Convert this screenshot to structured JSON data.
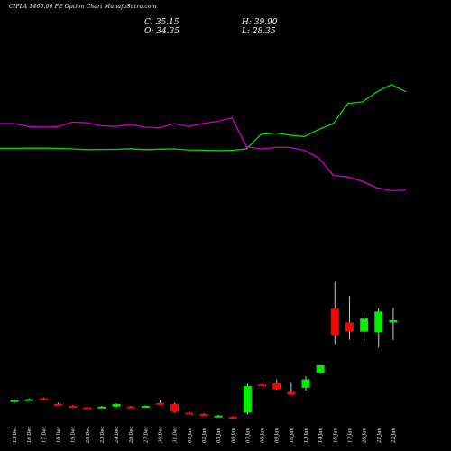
{
  "header": {
    "title": "CIPLA 1460.00  PE Option  Chart MunafaSutra.com",
    "close": "C: 35.15",
    "high": "H: 39.90",
    "open": "O: 34.35",
    "low": "L: 28.35"
  },
  "colors": {
    "background": "#000000",
    "up": "#00ee00",
    "down": "#ff0000",
    "line_upper": "#00dd00",
    "line_magenta": "#cc00cc",
    "text": "#ffffff"
  },
  "chart_data": {
    "type": "candlestick",
    "x_labels": [
      "13 Dec",
      "16 Dec",
      "17 Dec",
      "18 Dec",
      "19 Dec",
      "20 Dec",
      "23 Dec",
      "24 Dec",
      "26 Dec",
      "27 Dec",
      "30 Dec",
      "31 Dec",
      "01 Jan",
      "02 Jan",
      "03 Jan",
      "06 Jan",
      "07 Jan",
      "08 Jan",
      "09 Jan",
      "10 Jan",
      "13 Jan",
      "14 Jan",
      "16 Jan",
      "17 Jan",
      "20 Jan",
      "21 Jan",
      "22 Jan"
    ],
    "candles": [
      {
        "open": 2.6,
        "high": 3.1,
        "low": 2.1,
        "close": 3.0
      },
      {
        "open": 3.3,
        "high": 3.6,
        "low": 3.0,
        "close": 3.3
      },
      {
        "open": 3.6,
        "high": 3.8,
        "low": 2.9,
        "close": 3.0
      },
      {
        "open": 1.8,
        "high": 2.2,
        "low": 1.3,
        "close": 1.5
      },
      {
        "open": 1.2,
        "high": 1.4,
        "low": 0.6,
        "close": 0.8
      },
      {
        "open": 0.8,
        "high": 1.0,
        "low": 0.5,
        "close": 0.7
      },
      {
        "open": 0.8,
        "high": 1.2,
        "low": 0.5,
        "close": 1.0
      },
      {
        "open": 1.0,
        "high": 2.0,
        "low": 0.8,
        "close": 1.8
      },
      {
        "open": 1.0,
        "high": 1.2,
        "low": 0.8,
        "close": 0.9
      },
      {
        "open": 0.9,
        "high": 1.4,
        "low": 0.7,
        "close": 1.2
      },
      {
        "open": 2.1,
        "high": 2.9,
        "low": 1.7,
        "close": 1.9
      },
      {
        "open": 1.8,
        "high": 2.1,
        "low": -0.9,
        "close": -0.6
      },
      {
        "open": -0.9,
        "high": -0.6,
        "low": -1.1,
        "close": -1.0
      },
      {
        "open": -1.3,
        "high": -1.1,
        "low": -1.8,
        "close": -1.7
      },
      {
        "open": -1.8,
        "high": -1.6,
        "low": -2.0,
        "close": -1.8
      },
      {
        "open": -2.2,
        "high": -2.0,
        "low": -2.5,
        "close": -2.4
      },
      {
        "open": -0.8,
        "high": 8.2,
        "low": -1.4,
        "close": 7.4
      },
      {
        "open": 7.9,
        "high": 9.0,
        "low": 6.5,
        "close": 7.7
      },
      {
        "open": 8.3,
        "high": 9.5,
        "low": 6.2,
        "close": 6.4
      },
      {
        "open": 5.6,
        "high": 8.4,
        "low": 4.6,
        "close": 4.7
      },
      {
        "open": 6.9,
        "high": 10.5,
        "low": 6.0,
        "close": 9.5
      },
      {
        "open": 11.6,
        "high": 14.0,
        "low": 11.2,
        "close": 13.9
      },
      {
        "open": 31.6,
        "high": 39.9,
        "low": 20.5,
        "close": 23.4
      },
      {
        "open": 27.3,
        "high": 35.5,
        "low": 21.9,
        "close": 24.5
      },
      {
        "open": 24.4,
        "high": 29.5,
        "low": 20.5,
        "close": 28.5
      },
      {
        "open": 24.2,
        "high": 31.7,
        "low": 19.4,
        "close": 30.7
      },
      {
        "open": 27.3,
        "high": 31.8,
        "low": 21.8,
        "close": 28.0
      }
    ],
    "series": [
      {
        "values": [
          12.9,
          12.9,
          13.0,
          13.0,
          12.9,
          12.5,
          12.0,
          12.1,
          12.2,
          12.6,
          12.0,
          12.3,
          12.5,
          11.8,
          11.6,
          11.3,
          11.5,
          12.5,
          22.5,
          23.5,
          22.0,
          21.0,
          26.0,
          30.0,
          44.0,
          45.0,
          52.0,
          57.0,
          52.0
        ]
      },
      {
        "values": [
          30.0,
          30.0,
          28.0,
          27.5,
          28.0,
          31.0,
          30.5,
          28.5,
          28.0,
          29.5,
          27.5,
          27.0,
          30.0,
          28.0,
          30.0,
          31.5,
          34.0,
          14.0,
          12.5,
          13.5,
          13.5,
          11.5,
          6.0,
          -6.0,
          -7.0,
          -10.0,
          -14.5,
          -16.5,
          -16.0
        ]
      }
    ],
    "grid": false,
    "legend": "none"
  }
}
